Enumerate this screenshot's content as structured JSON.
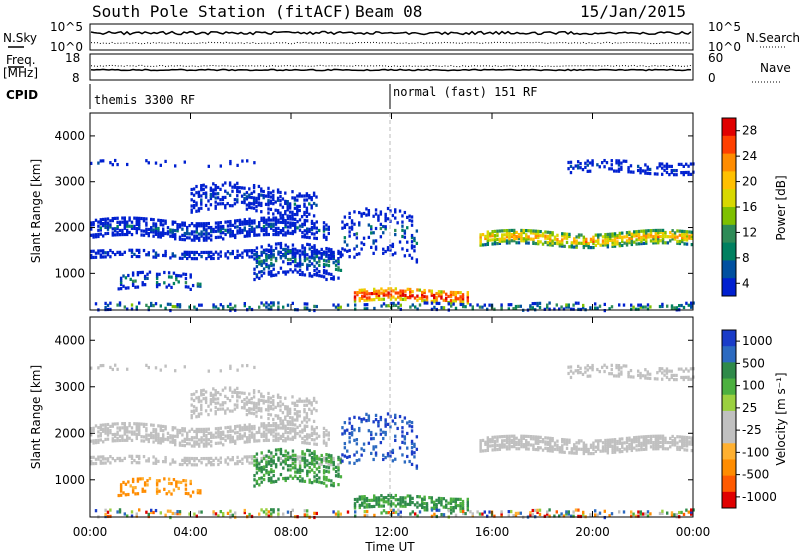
{
  "header": {
    "title": "South Pole Station (fitACF)",
    "beam": "Beam 08",
    "date": "15/Jan/2015"
  },
  "panel_labels": {
    "nsky": "N.Sky",
    "nsky_tick_top": "10^5",
    "nsky_tick_bottom": "10^0",
    "nsearch": "N.Search",
    "nsearch_tick_top": "10^5",
    "nsearch_tick_bottom": "10^0",
    "freq": "Freq.",
    "freq_unit": "[MHz]",
    "freq_tick_top": "18",
    "freq_tick_bottom": "8",
    "nave": "Nave",
    "nave_tick_top": "60",
    "nave_tick_bottom": "0",
    "cpid": "CPID",
    "cpid_1": "themis 3300 RF",
    "cpid_2": "normal (fast) 151 RF"
  },
  "power_colorbar": {
    "label": "Power [dB]",
    "ticks": [
      "28",
      "24",
      "20",
      "16",
      "12",
      "8",
      "4"
    ],
    "colors": [
      "#e00000",
      "#ff4000",
      "#ff8c00",
      "#ffc000",
      "#d8d800",
      "#7ec000",
      "#2e8b57",
      "#008060",
      "#0050a0",
      "#0020d0"
    ]
  },
  "velocity_colorbar": {
    "label": "Velocity [m s⁻¹]",
    "ticks": [
      "1000",
      "500",
      "100",
      "25",
      "-25",
      "-100",
      "-500",
      "-1000"
    ],
    "colors": [
      "#1a3cc8",
      "#2c6ac0",
      "#2f8a4a",
      "#4cb040",
      "#9bd040",
      "#c0c0c0",
      "#c0c0c0",
      "#ffb030",
      "#ff8c00",
      "#ff5a00",
      "#e00000"
    ]
  },
  "chart_data": [
    {
      "type": "heatmap",
      "title": "",
      "xlabel": "",
      "ylabel": "Slant Range [km]",
      "x_ticks": [
        "00:00",
        "04:00",
        "08:00",
        "12:00",
        "16:00",
        "20:00",
        "00:00"
      ],
      "y_ticks": [
        "1000",
        "2000",
        "3000",
        "4000"
      ],
      "ylim": [
        200,
        4500
      ],
      "xlim_hours": [
        0,
        24
      ],
      "quantity": "Power [dB]",
      "range": [
        0,
        30
      ]
    },
    {
      "type": "heatmap",
      "title": "",
      "xlabel": "Time UT",
      "ylabel": "Slant Range [km]",
      "x_ticks": [
        "00:00",
        "04:00",
        "08:00",
        "12:00",
        "16:00",
        "20:00",
        "00:00"
      ],
      "y_ticks": [
        "1000",
        "2000",
        "3000",
        "4000"
      ],
      "ylim": [
        200,
        4500
      ],
      "xlim_hours": [
        0,
        24
      ],
      "quantity": "Velocity [m s⁻¹]",
      "range": [
        -1000,
        1000
      ]
    }
  ],
  "x_axis_title": "Time UT"
}
